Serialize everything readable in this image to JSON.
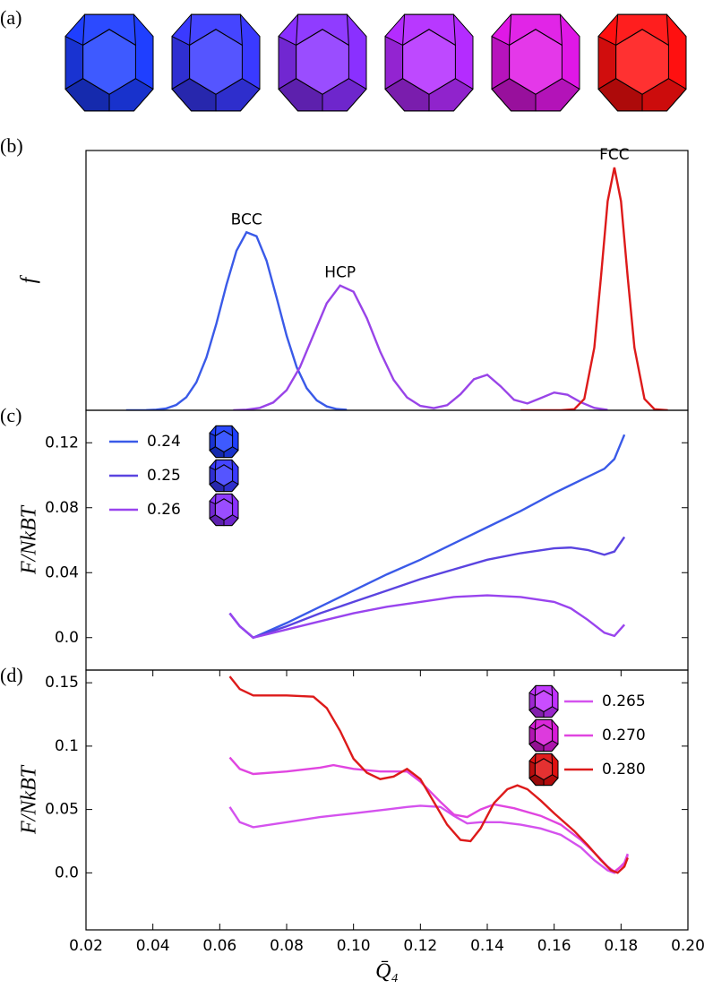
{
  "panel_a": {
    "panel_label": "(a)"
  },
  "chart_data": [
    {
      "type": "line",
      "panel_label": "(b)",
      "ylabel": "f",
      "annotate": true,
      "xlim": [
        0.02,
        0.2
      ],
      "ylim": [
        0,
        1.07
      ],
      "series": [
        {
          "name": "BCC",
          "color": "#3a5ae8",
          "x": [
            0.032,
            0.035,
            0.038,
            0.041,
            0.044,
            0.047,
            0.05,
            0.053,
            0.056,
            0.059,
            0.062,
            0.065,
            0.068,
            0.071,
            0.074,
            0.077,
            0.08,
            0.083,
            0.086,
            0.089,
            0.092,
            0.095,
            0.098
          ],
          "values": [
            0,
            0.0002,
            0.0007,
            0.0025,
            0.0079,
            0.022,
            0.054,
            0.115,
            0.217,
            0.357,
            0.517,
            0.657,
            0.733,
            0.717,
            0.616,
            0.464,
            0.307,
            0.178,
            0.091,
            0.041,
            0.016,
            0.005,
            0.002
          ]
        },
        {
          "name": "HCP",
          "color": "#9944e8",
          "x": [
            0.064,
            0.068,
            0.072,
            0.076,
            0.08,
            0.084,
            0.088,
            0.092,
            0.096,
            0.1,
            0.104,
            0.108,
            0.112,
            0.116,
            0.12,
            0.124,
            0.128,
            0.132,
            0.136,
            0.14,
            0.144,
            0.148,
            0.152,
            0.156,
            0.16,
            0.164,
            0.168,
            0.172,
            0.176
          ],
          "values": [
            0.0005,
            0.0026,
            0.01,
            0.032,
            0.083,
            0.178,
            0.31,
            0.441,
            0.514,
            0.488,
            0.379,
            0.241,
            0.125,
            0.053,
            0.018,
            0.009,
            0.021,
            0.066,
            0.128,
            0.146,
            0.099,
            0.043,
            0.028,
            0.05,
            0.073,
            0.064,
            0.033,
            0.01,
            0.002
          ]
        },
        {
          "name": "FCC",
          "color": "#dd1a1a",
          "x": [
            0.15,
            0.154,
            0.158,
            0.162,
            0.166,
            0.169,
            0.172,
            0.174,
            0.176,
            0.178,
            0.18,
            0.182,
            0.184,
            0.187,
            0.19,
            0.194
          ],
          "values": [
            0,
            0,
            0,
            0.0001,
            0.0045,
            0.047,
            0.258,
            0.548,
            0.861,
            1.0,
            0.861,
            0.548,
            0.258,
            0.047,
            0.0045,
            0.0001
          ]
        }
      ]
    },
    {
      "type": "line",
      "panel_label": "(c)",
      "ylabel": "F/NkBT",
      "legend": "upper left",
      "xlim": [
        0.02,
        0.2
      ],
      "ylim": [
        -0.02,
        0.14
      ],
      "yticks": [
        {
          "value": 0,
          "label": "0.0"
        },
        0.04,
        0.08,
        0.12
      ],
      "series": [
        {
          "name": "0.24",
          "color": "#3a5ae8",
          "icon_color": "#1f3fff",
          "x": [
            0.063,
            0.066,
            0.07,
            0.08,
            0.09,
            0.1,
            0.11,
            0.12,
            0.13,
            0.14,
            0.15,
            0.16,
            0.17,
            0.175,
            0.178,
            0.181
          ],
          "values": [
            0.015,
            0.007,
            0,
            0.009,
            0.019,
            0.029,
            0.039,
            0.048,
            0.058,
            0.068,
            0.078,
            0.089,
            0.099,
            0.104,
            0.11,
            0.125
          ]
        },
        {
          "name": "0.25",
          "color": "#5a44e0",
          "icon_color": "#3a3aff",
          "x": [
            0.063,
            0.066,
            0.07,
            0.08,
            0.09,
            0.1,
            0.11,
            0.12,
            0.13,
            0.14,
            0.15,
            0.16,
            0.165,
            0.17,
            0.175,
            0.178,
            0.181
          ],
          "values": [
            0.015,
            0.007,
            0,
            0.007,
            0.015,
            0.022,
            0.029,
            0.036,
            0.042,
            0.048,
            0.052,
            0.055,
            0.0555,
            0.054,
            0.051,
            0.053,
            0.062
          ]
        },
        {
          "name": "0.26",
          "color": "#9944ee",
          "icon_color": "#8a30ff",
          "x": [
            0.063,
            0.066,
            0.07,
            0.08,
            0.09,
            0.1,
            0.11,
            0.12,
            0.13,
            0.14,
            0.15,
            0.16,
            0.165,
            0.17,
            0.175,
            0.178,
            0.181
          ],
          "values": [
            0.015,
            0.007,
            0,
            0.005,
            0.01,
            0.015,
            0.019,
            0.022,
            0.025,
            0.026,
            0.025,
            0.022,
            0.018,
            0.011,
            0.003,
            0.001,
            0.008
          ]
        }
      ]
    },
    {
      "type": "line",
      "panel_label": "(d)",
      "ylabel": "F/NkBT",
      "xlabel": "Q̄₄",
      "legend": "upper right",
      "xlim": [
        0.02,
        0.2
      ],
      "ylim": [
        -0.045,
        0.16
      ],
      "xticks": [
        0.02,
        0.04,
        0.06,
        0.08,
        {
          "value": 0.1,
          "label": "0.10"
        },
        0.12,
        0.14,
        0.16,
        0.18,
        {
          "value": 0.2,
          "label": "0.20"
        }
      ],
      "yticks": [
        {
          "value": 0,
          "label": "0.0"
        },
        0.05,
        0.1,
        0.15
      ],
      "series": [
        {
          "name": "0.265",
          "color": "#d452ee",
          "icon_color": "#c030ff",
          "x": [
            0.063,
            0.066,
            0.07,
            0.08,
            0.09,
            0.1,
            0.11,
            0.116,
            0.12,
            0.126,
            0.13,
            0.134,
            0.138,
            0.144,
            0.15,
            0.156,
            0.162,
            0.168,
            0.172,
            0.176,
            0.178,
            0.181,
            0.182
          ],
          "values": [
            0.052,
            0.04,
            0.036,
            0.04,
            0.044,
            0.047,
            0.05,
            0.052,
            0.053,
            0.052,
            0.045,
            0.039,
            0.04,
            0.04,
            0.038,
            0.035,
            0.03,
            0.02,
            0.01,
            0.002,
            0,
            0.008,
            0.015
          ]
        },
        {
          "name": "0.270",
          "color": "#e045e0",
          "icon_color": "#d81ad8",
          "x": [
            0.063,
            0.066,
            0.07,
            0.08,
            0.09,
            0.094,
            0.1,
            0.108,
            0.116,
            0.12,
            0.126,
            0.13,
            0.134,
            0.138,
            0.142,
            0.148,
            0.156,
            0.162,
            0.168,
            0.172,
            0.176,
            0.178,
            0.181,
            0.182
          ],
          "values": [
            0.091,
            0.082,
            0.078,
            0.08,
            0.083,
            0.085,
            0.082,
            0.08,
            0.08,
            0.072,
            0.056,
            0.046,
            0.044,
            0.05,
            0.054,
            0.051,
            0.045,
            0.038,
            0.026,
            0.016,
            0.005,
            0.001,
            0.007,
            0.014
          ]
        },
        {
          "name": "0.280",
          "color": "#dd1a1a",
          "icon_color": "#e01010",
          "x": [
            0.063,
            0.066,
            0.07,
            0.08,
            0.088,
            0.092,
            0.096,
            0.1,
            0.104,
            0.108,
            0.112,
            0.116,
            0.12,
            0.124,
            0.128,
            0.132,
            0.135,
            0.138,
            0.142,
            0.146,
            0.149,
            0.152,
            0.156,
            0.16,
            0.166,
            0.17,
            0.174,
            0.177,
            0.179,
            0.181,
            0.182
          ],
          "values": [
            0.155,
            0.145,
            0.14,
            0.14,
            0.139,
            0.13,
            0.112,
            0.09,
            0.079,
            0.074,
            0.076,
            0.082,
            0.074,
            0.056,
            0.038,
            0.026,
            0.025,
            0.035,
            0.055,
            0.066,
            0.069,
            0.066,
            0.057,
            0.047,
            0.033,
            0.022,
            0.01,
            0.002,
            0,
            0.005,
            0.012
          ]
        }
      ]
    }
  ]
}
